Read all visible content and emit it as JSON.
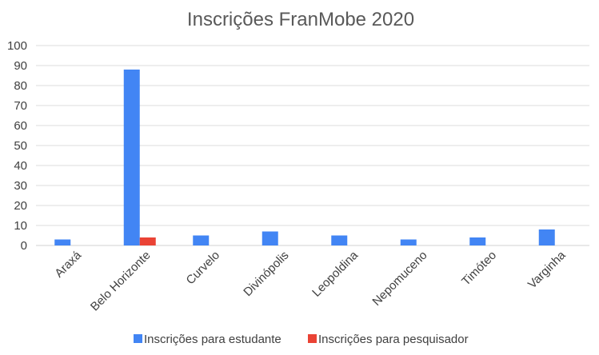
{
  "chart_data": {
    "type": "bar",
    "title": "Inscrições FranMobe 2020",
    "categories": [
      "Araxá",
      "Belo Horizonte",
      "Curvelo",
      "Divinópolis",
      "Leopoldina",
      "Nepomuceno",
      "Timóteo",
      "Varginha"
    ],
    "series": [
      {
        "name": "Inscrições para estudante",
        "color": "#4285f4",
        "values": [
          3,
          88,
          5,
          7,
          5,
          3,
          4,
          8
        ]
      },
      {
        "name": "Inscrições para pesquisador",
        "color": "#ea4335",
        "values": [
          0,
          4,
          0,
          0,
          0,
          0,
          0,
          0
        ]
      }
    ],
    "ylim": [
      0,
      100
    ],
    "yticks": [
      0,
      10,
      20,
      30,
      40,
      50,
      60,
      70,
      80,
      90,
      100
    ],
    "grid": true,
    "legend_position": "bottom"
  }
}
